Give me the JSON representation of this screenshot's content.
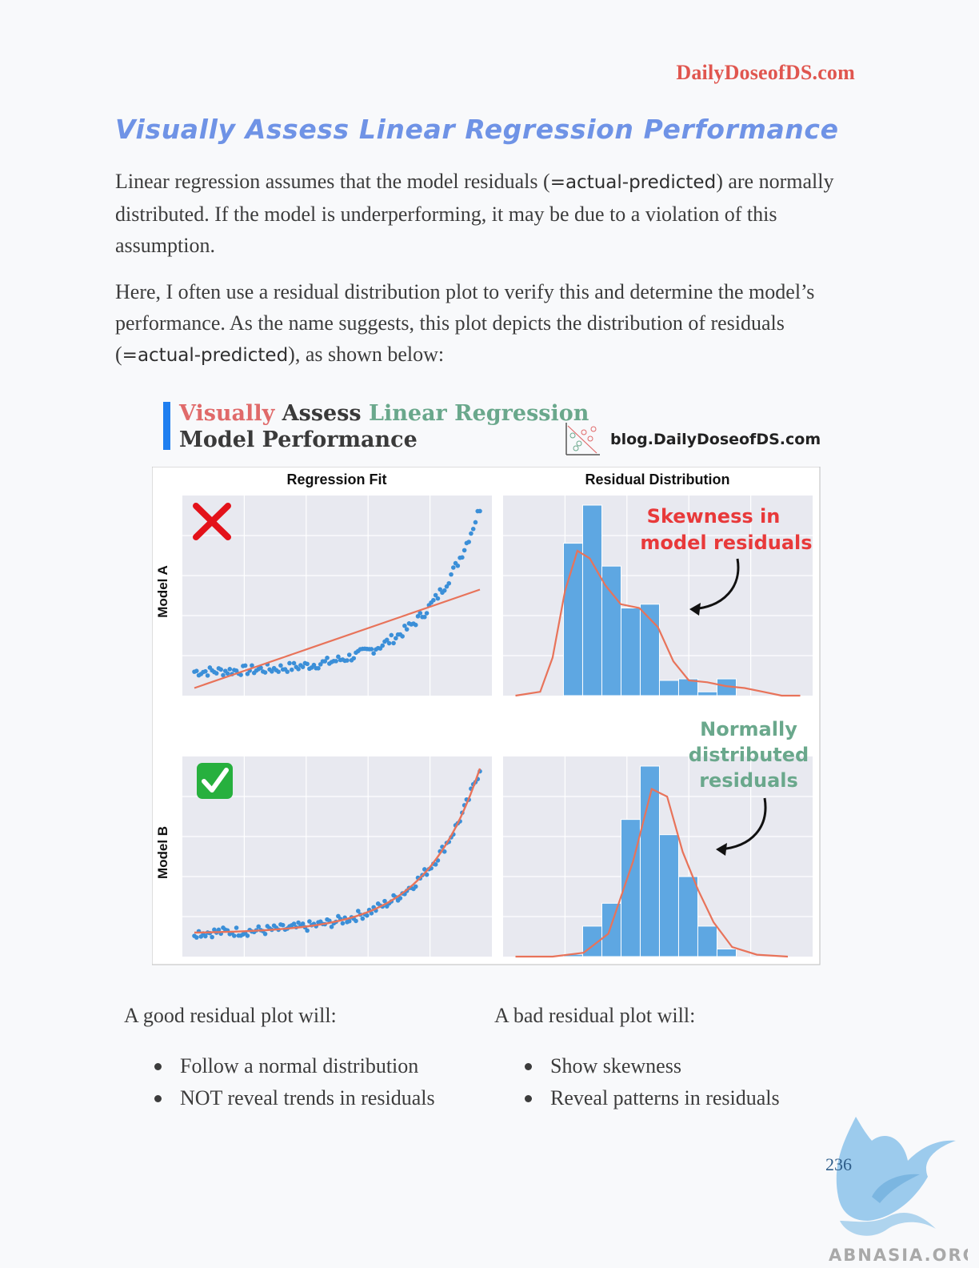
{
  "header": {
    "brand": "DailyDoseofDS.com"
  },
  "title": "Visually Assess Linear Regression Performance",
  "paragraph1": {
    "before": "Linear regression assumes that the model residuals (",
    "code": "=actual-predicted",
    "after": ") are normally distributed. If the model is underperforming, it may be due to a violation of this assumption."
  },
  "paragraph2": {
    "before": "Here, I often use a residual distribution plot to verify this and determine the model’s performance. As the name suggests, this plot depicts the distribution of residuals (",
    "code": "=actual-predicted",
    "after": "), as shown below:"
  },
  "figure": {
    "title_word1": "Visually",
    "title_word2": "Assess",
    "title_word3": "Linear Regression",
    "title_line2": "Model Performance",
    "url": "blog.DailyDoseofDS.com",
    "col_titles": [
      "Regression Fit",
      "Residual Distribution"
    ],
    "row_labels": [
      "Model A",
      "Model B"
    ],
    "annotation_a": [
      "Skewness in",
      "model residuals"
    ],
    "annotation_b": [
      "Normally",
      "distributed",
      "residuals"
    ],
    "colors": {
      "points": "#3b8fd8",
      "fit": "#e8735a",
      "bars": "#5ea7e2",
      "panel": "#e8e9f0",
      "bad_note": "#e8393a",
      "good_note": "#6aa88c"
    }
  },
  "chart_data": [
    {
      "type": "scatter",
      "panel": "Model A - Regression Fit",
      "title": "Regression Fit",
      "ylabel": "Model A",
      "description_series": "exponential-like data with straight-line fit",
      "fit": "linear"
    },
    {
      "type": "bar",
      "panel": "Model A - Residual Distribution",
      "title": "Residual Distribution",
      "values": [
        20,
        25,
        17,
        11.5,
        12,
        2,
        2.2,
        0.5,
        2.2
      ],
      "overlay": "kde"
    },
    {
      "type": "scatter",
      "panel": "Model B - Regression Fit",
      "ylabel": "Model B",
      "fit": "exponential"
    },
    {
      "type": "bar",
      "panel": "Model B - Residual Distribution",
      "values": [
        0.3,
        4,
        7,
        18,
        25,
        16,
        10.5,
        4,
        1
      ],
      "overlay": "kde"
    }
  ],
  "lists": {
    "good_head": "A good residual plot will:",
    "good_items": [
      "Follow a normal distribution",
      "NOT reveal trends in residuals"
    ],
    "bad_head": "A bad residual plot will:",
    "bad_items": [
      "Show skewness",
      "Reveal patterns in residuals"
    ]
  },
  "page_number": "236",
  "watermark": "ABNASIA.ORG"
}
